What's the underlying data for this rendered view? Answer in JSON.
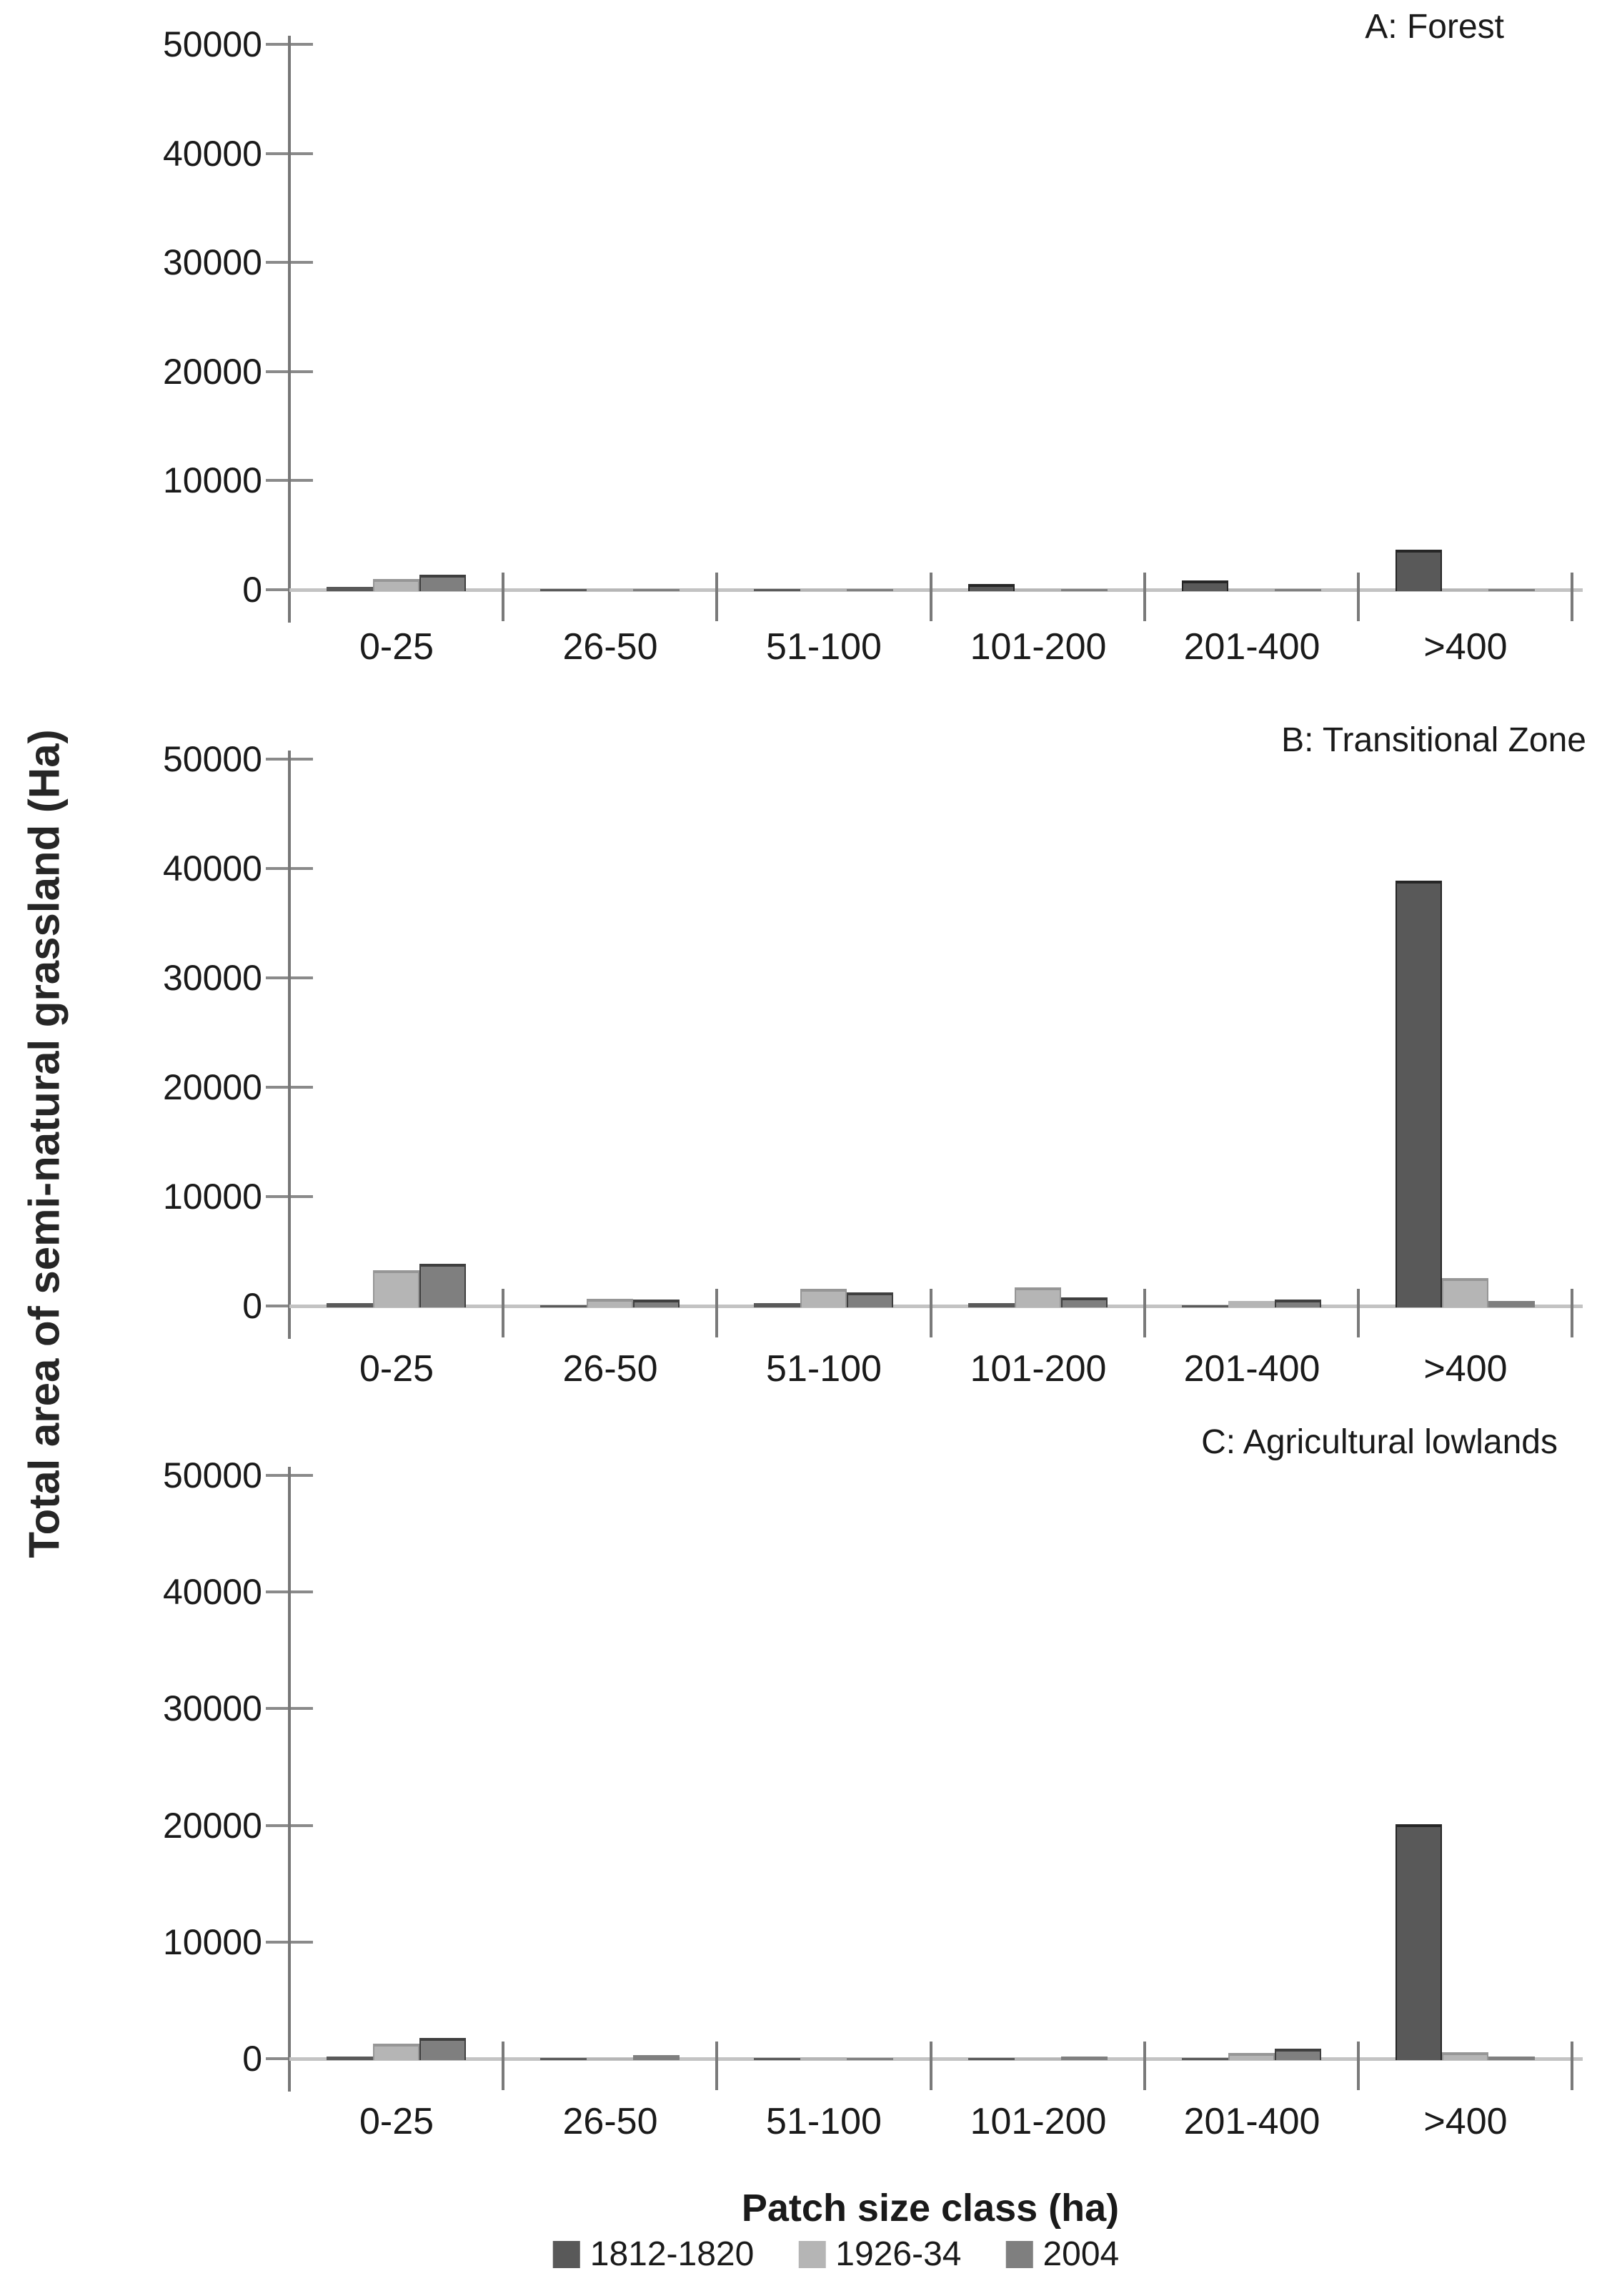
{
  "figure": {
    "ylabel": "Total area of semi-natural grassland (Ha)",
    "xlabel": "Patch size class (ha)"
  },
  "legend": {
    "position": "bottom",
    "items": [
      "1812-1820",
      "1926-34",
      "2004"
    ]
  },
  "chart_data": [
    {
      "type": "bar",
      "title": "A: Forest",
      "categories": [
        "0-25",
        "26-50",
        "51-100",
        "101-200",
        "201-400",
        ">400"
      ],
      "ylim": [
        0,
        50000
      ],
      "yticks": [
        0,
        10000,
        20000,
        30000,
        40000,
        50000
      ],
      "grid": false,
      "series": [
        {
          "name": "1812-1820",
          "color": "#595959",
          "values": [
            400,
            100,
            100,
            650,
            1000,
            3800
          ]
        },
        {
          "name": "1926-34",
          "color": "#b5b5b5",
          "values": [
            1100,
            200,
            150,
            100,
            100,
            100
          ]
        },
        {
          "name": "2004",
          "color": "#7f7f7f",
          "values": [
            1500,
            200,
            150,
            100,
            100,
            100
          ]
        }
      ]
    },
    {
      "type": "bar",
      "title": "B: Transitional Zone",
      "categories": [
        "0-25",
        "26-50",
        "51-100",
        "101-200",
        "201-400",
        ">400"
      ],
      "ylim": [
        0,
        50000
      ],
      "yticks": [
        0,
        10000,
        20000,
        30000,
        40000,
        50000
      ],
      "grid": false,
      "series": [
        {
          "name": "1812-1820",
          "color": "#595959",
          "values": [
            400,
            200,
            400,
            400,
            200,
            39000
          ]
        },
        {
          "name": "1926-34",
          "color": "#b5b5b5",
          "values": [
            3400,
            800,
            1700,
            1800,
            600,
            2700
          ]
        },
        {
          "name": "2004",
          "color": "#7f7f7f",
          "values": [
            4000,
            750,
            1400,
            900,
            700,
            600
          ]
        }
      ]
    },
    {
      "type": "bar",
      "title": "C: Agricultural lowlands",
      "categories": [
        "0-25",
        "26-50",
        "51-100",
        "101-200",
        "201-400",
        ">400"
      ],
      "ylim": [
        0,
        50000
      ],
      "yticks": [
        0,
        10000,
        20000,
        30000,
        40000,
        50000
      ],
      "grid": false,
      "series": [
        {
          "name": "1812-1820",
          "color": "#595959",
          "values": [
            300,
            100,
            100,
            100,
            100,
            20200
          ]
        },
        {
          "name": "1926-34",
          "color": "#b5b5b5",
          "values": [
            1400,
            150,
            250,
            150,
            600,
            700
          ]
        },
        {
          "name": "2004",
          "color": "#7f7f7f",
          "values": [
            1900,
            400,
            150,
            300,
            1000,
            300
          ]
        }
      ]
    }
  ]
}
